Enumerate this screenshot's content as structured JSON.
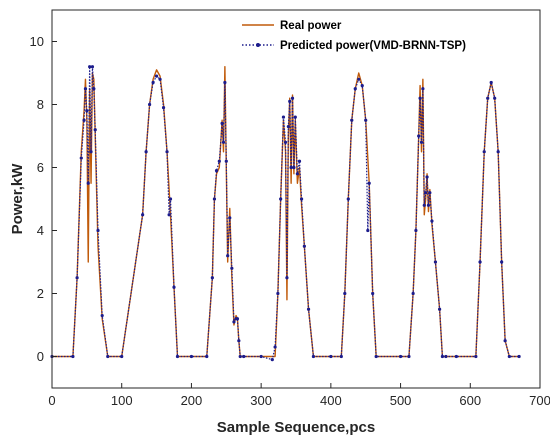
{
  "chart_data": {
    "type": "line",
    "title": "",
    "xlabel": "Sample Sequence,pcs",
    "ylabel": "Power,kW",
    "xlim": [
      0,
      700
    ],
    "ylim": [
      -1,
      11
    ],
    "xticks": [
      0,
      100,
      200,
      300,
      400,
      500,
      600,
      700
    ],
    "yticks": [
      0,
      2,
      4,
      6,
      8,
      10
    ],
    "grid": false,
    "legend_position": "top-right",
    "colors": {
      "real": "#c05a0a",
      "predicted": "#1c1c8c"
    },
    "series": [
      {
        "name": "Real power",
        "style": "line",
        "x": [
          0,
          30,
          36,
          42,
          46,
          48,
          50,
          52,
          54,
          56,
          58,
          60,
          62,
          66,
          72,
          80,
          100,
          130,
          135,
          140,
          145,
          150,
          155,
          160,
          165,
          170,
          175,
          180,
          200,
          222,
          230,
          233,
          236,
          240,
          244,
          246,
          248,
          250,
          252,
          255,
          258,
          261,
          264,
          266,
          268,
          270,
          275,
          300,
          320,
          324,
          328,
          332,
          335,
          337,
          339,
          341,
          343,
          345,
          347,
          349,
          352,
          355,
          358,
          362,
          368,
          375,
          400,
          415,
          420,
          425,
          430,
          435,
          440,
          445,
          450,
          455,
          460,
          465,
          500,
          512,
          518,
          522,
          526,
          528,
          530,
          532,
          534,
          536,
          538,
          540,
          542,
          545,
          550,
          556,
          560,
          565,
          580,
          608,
          614,
          620,
          625,
          630,
          635,
          640,
          645,
          650,
          656,
          670
        ],
        "y": [
          0,
          0,
          2.5,
          6.5,
          7.8,
          8.8,
          7.5,
          3.0,
          8.5,
          5.5,
          9.0,
          8.8,
          7.0,
          3.5,
          1.2,
          0,
          0,
          4.5,
          6.5,
          8.0,
          8.8,
          9.1,
          8.9,
          8.0,
          6.5,
          4.5,
          2.2,
          0,
          0,
          0,
          2.5,
          5.0,
          5.8,
          6.0,
          7.5,
          6.5,
          9.2,
          6.0,
          3.0,
          4.7,
          2.5,
          1.0,
          1.3,
          1.2,
          0.5,
          0,
          0,
          0,
          0,
          2.0,
          5.0,
          7.5,
          6.5,
          1.8,
          7.0,
          8.2,
          5.5,
          8.3,
          5.8,
          7.5,
          5.5,
          6.0,
          4.8,
          3.5,
          1.5,
          0,
          0,
          0,
          2.0,
          5.0,
          7.5,
          8.5,
          9.0,
          8.6,
          7.5,
          5.5,
          2.0,
          0,
          0,
          0,
          2.0,
          4.0,
          7.0,
          8.6,
          6.5,
          8.8,
          4.5,
          5.0,
          5.8,
          4.6,
          5.3,
          4.2,
          3.0,
          1.5,
          0,
          0,
          0,
          0,
          3.0,
          6.5,
          8.2,
          8.7,
          8.2,
          6.5,
          3.0,
          0.5,
          0,
          0
        ]
      },
      {
        "name": "Predicted power(VMD-BRNN-TSP)",
        "style": "dotted-markers",
        "x": [
          0,
          30,
          36,
          42,
          46,
          48,
          50,
          52,
          54,
          56,
          58,
          60,
          62,
          66,
          72,
          80,
          100,
          130,
          135,
          140,
          145,
          150,
          155,
          160,
          165,
          168,
          170,
          175,
          180,
          200,
          222,
          230,
          233,
          236,
          240,
          244,
          246,
          248,
          250,
          252,
          255,
          258,
          261,
          264,
          266,
          268,
          270,
          275,
          300,
          316,
          320,
          324,
          328,
          332,
          335,
          337,
          339,
          341,
          343,
          345,
          347,
          349,
          352,
          355,
          358,
          362,
          368,
          375,
          400,
          415,
          420,
          425,
          430,
          435,
          440,
          445,
          450,
          453,
          455,
          460,
          465,
          500,
          512,
          518,
          522,
          526,
          528,
          530,
          532,
          534,
          536,
          538,
          540,
          542,
          545,
          550,
          556,
          560,
          565,
          580,
          608,
          614,
          620,
          625,
          630,
          635,
          640,
          645,
          650,
          656,
          670
        ],
        "y": [
          0,
          0,
          2.5,
          6.3,
          7.5,
          8.5,
          7.8,
          5.5,
          9.2,
          6.5,
          9.2,
          8.5,
          7.2,
          4.0,
          1.3,
          0,
          0,
          4.5,
          6.5,
          8.0,
          8.7,
          8.9,
          8.8,
          7.9,
          6.5,
          4.5,
          5.0,
          2.2,
          0,
          0,
          0,
          2.5,
          5.0,
          5.9,
          6.2,
          7.4,
          6.8,
          8.7,
          6.2,
          3.2,
          4.4,
          2.8,
          1.1,
          1.2,
          1.2,
          0.5,
          0,
          0,
          0,
          -0.1,
          0.3,
          2.0,
          5.0,
          7.6,
          6.8,
          2.5,
          7.3,
          8.1,
          6.0,
          8.2,
          6.0,
          7.6,
          5.8,
          6.2,
          5.0,
          3.5,
          1.5,
          0,
          0,
          0,
          2.0,
          5.0,
          7.5,
          8.5,
          8.8,
          8.6,
          7.5,
          4.0,
          5.5,
          2.0,
          0,
          0,
          0,
          2.0,
          4.0,
          7.0,
          8.2,
          6.8,
          8.5,
          4.8,
          5.2,
          5.7,
          4.8,
          5.2,
          4.3,
          3.0,
          1.5,
          0,
          0,
          0,
          0,
          3.0,
          6.5,
          8.2,
          8.7,
          8.2,
          6.5,
          3.0,
          0.5,
          0,
          0
        ]
      }
    ]
  }
}
